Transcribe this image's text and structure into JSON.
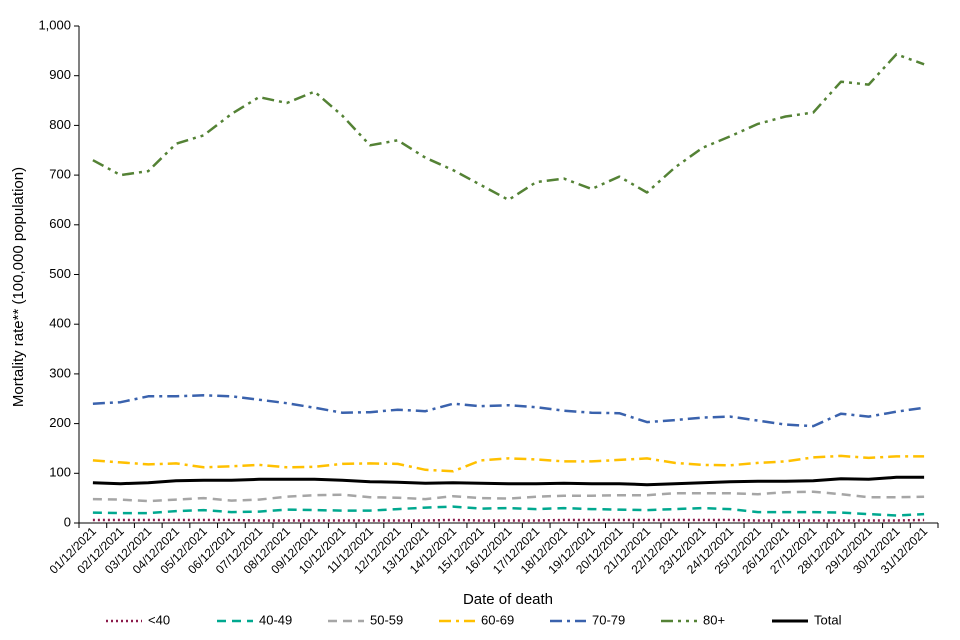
{
  "chart_data": {
    "type": "line",
    "title": "",
    "xlabel": "Date of death",
    "ylabel": "Mortality rate** (100,000 population)",
    "ylim": [
      0,
      1000
    ],
    "yticks": [
      "0",
      "100",
      "200",
      "300",
      "400",
      "500",
      "600",
      "700",
      "800",
      "900",
      "1,000"
    ],
    "grid": false,
    "legend_position": "bottom",
    "x": [
      "01/12/2021",
      "02/12/2021",
      "03/12/2021",
      "04/12/2021",
      "05/12/2021",
      "06/12/2021",
      "07/12/2021",
      "08/12/2021",
      "09/12/2021",
      "10/12/2021",
      "11/12/2021",
      "12/12/2021",
      "13/12/2021",
      "14/12/2021",
      "15/12/2021",
      "16/12/2021",
      "17/12/2021",
      "18/12/2021",
      "19/12/2021",
      "20/12/2021",
      "21/12/2021",
      "22/12/2021",
      "23/12/2021",
      "24/12/2021",
      "25/12/2021",
      "26/12/2021",
      "27/12/2021",
      "28/12/2021",
      "29/12/2021",
      "30/12/2021",
      "31/12/2021"
    ],
    "series": [
      {
        "name": "<40",
        "color": "#8b1a4a",
        "dash": "2,3",
        "width": 2.5,
        "values": [
          6,
          6,
          6,
          6,
          6,
          6,
          5,
          5,
          5,
          5,
          5,
          5,
          5,
          6,
          5,
          5,
          5,
          6,
          6,
          6,
          6,
          6,
          6,
          6,
          5,
          5,
          5,
          5,
          5,
          5,
          6
        ]
      },
      {
        "name": "40-49",
        "color": "#00a88f",
        "dash": "9,6",
        "width": 2.5,
        "values": [
          21,
          20,
          20,
          24,
          26,
          22,
          23,
          27,
          26,
          25,
          25,
          28,
          31,
          33,
          29,
          30,
          28,
          30,
          28,
          27,
          26,
          28,
          30,
          28,
          22,
          22,
          22,
          21,
          18,
          15,
          18
        ]
      },
      {
        "name": "50-59",
        "color": "#a6a6a6",
        "dash": "9,6",
        "width": 2.5,
        "values": [
          48,
          47,
          44,
          47,
          50,
          45,
          47,
          53,
          56,
          57,
          52,
          51,
          48,
          54,
          50,
          49,
          53,
          55,
          55,
          56,
          56,
          60,
          60,
          60,
          58,
          62,
          63,
          58,
          52,
          52,
          53
        ]
      },
      {
        "name": "60-69",
        "color": "#ffc000",
        "dash": "12,5,3,5",
        "width": 2.5,
        "values": [
          126,
          122,
          118,
          120,
          112,
          114,
          117,
          112,
          113,
          119,
          120,
          119,
          107,
          104,
          126,
          130,
          128,
          124,
          124,
          127,
          130,
          121,
          117,
          116,
          121,
          124,
          132,
          135,
          131,
          134,
          134
        ]
      },
      {
        "name": "70-79",
        "color": "#3a62ad",
        "dash": "12,5,3,5",
        "width": 2.5,
        "values": [
          240,
          243,
          255,
          255,
          257,
          255,
          248,
          241,
          232,
          222,
          223,
          228,
          225,
          240,
          235,
          237,
          233,
          226,
          222,
          221,
          203,
          207,
          212,
          214,
          206,
          198,
          195,
          220,
          214,
          224,
          232
        ]
      },
      {
        "name": "80+",
        "color": "#548235",
        "dash": "12,5,3,5,3,5",
        "width": 2.5,
        "values": [
          730,
          700,
          708,
          763,
          780,
          823,
          857,
          845,
          868,
          820,
          760,
          770,
          735,
          710,
          680,
          650,
          686,
          693,
          672,
          697,
          665,
          715,
          755,
          778,
          803,
          818,
          826,
          888,
          882,
          943,
          923
        ]
      },
      {
        "name": "Total",
        "color": "#000000",
        "dash": "",
        "width": 3,
        "values": [
          81,
          79,
          81,
          85,
          86,
          86,
          88,
          88,
          88,
          86,
          83,
          82,
          80,
          81,
          80,
          79,
          79,
          80,
          79,
          79,
          77,
          79,
          81,
          83,
          84,
          84,
          85,
          89,
          88,
          92,
          92
        ]
      }
    ]
  }
}
